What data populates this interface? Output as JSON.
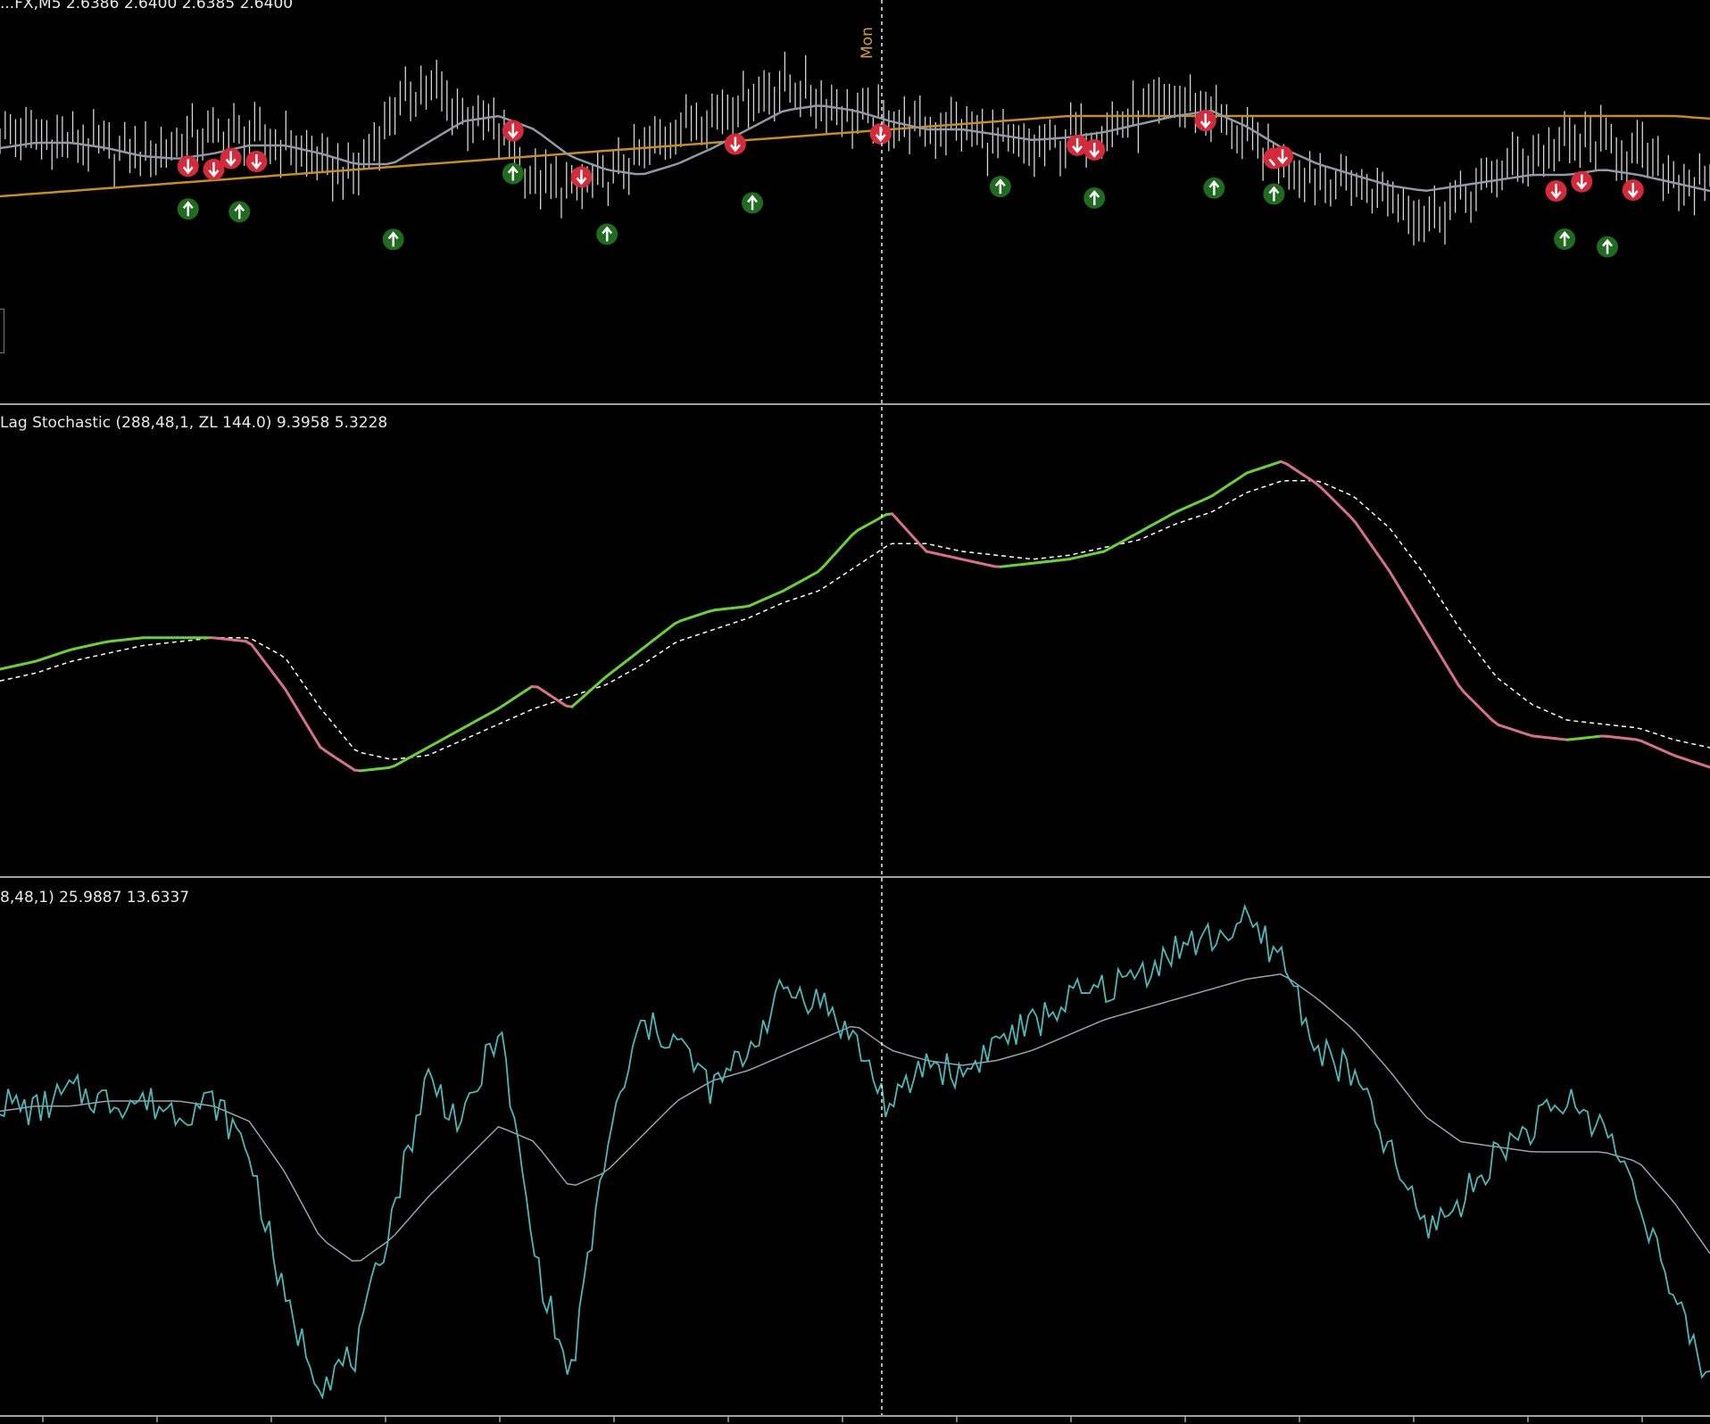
{
  "main_pane": {
    "label": "...FX,M5  2.6386 2.6400 2.6385 2.6400",
    "day_marker": "Mon"
  },
  "stoch_pane": {
    "label": "Lag Stochastic (288,48,1, ZL 144.0) 9.3958 5.3228"
  },
  "osc_pane": {
    "label": "8,48,1) 25.9887 13.6337"
  },
  "colors": {
    "background": "#000000",
    "price_bars": "#d8d8d8",
    "ma_fast": "#8f9aa6",
    "ma_slow": "#c88a2a",
    "buy_signal": "#1f6b1f",
    "sell_signal": "#d42b3c",
    "stoch_up": "#6ccf3a",
    "stoch_down": "#d9708a",
    "signal_line": "#ffffff",
    "osc_line": "#4cb8b8",
    "osc_signal": "#9aa3aa",
    "crosshair": "#ffffff",
    "day_marker": "#d4a030"
  },
  "chart_data": [
    {
      "type": "line",
      "pane": "price",
      "series": [
        {
          "values": [
            0.55,
            0.52,
            0.5,
            0.47,
            0.46,
            0.5,
            0.53,
            0.52,
            0.5,
            0.42,
            0.38,
            0.62,
            0.72,
            0.6,
            0.55,
            0.35,
            0.32,
            0.36,
            0.45,
            0.58,
            0.62,
            0.68,
            0.72,
            0.66,
            0.6,
            0.58,
            0.55,
            0.56,
            0.5,
            0.46,
            0.52,
            0.55,
            0.6,
            0.65,
            0.62,
            0.5,
            0.42,
            0.38,
            0.35,
            0.3,
            0.22,
            0.28,
            0.38,
            0.45,
            0.48,
            0.5,
            0.45,
            0.38,
            0.32
          ]
        },
        {
          "values": [
            0.48,
            0.5,
            0.5,
            0.48,
            0.45,
            0.44,
            0.46,
            0.49,
            0.49,
            0.46,
            0.42,
            0.42,
            0.5,
            0.58,
            0.6,
            0.55,
            0.45,
            0.4,
            0.38,
            0.42,
            0.48,
            0.55,
            0.62,
            0.64,
            0.62,
            0.58,
            0.55,
            0.55,
            0.53,
            0.51,
            0.52,
            0.54,
            0.57,
            0.6,
            0.62,
            0.56,
            0.48,
            0.42,
            0.38,
            0.34,
            0.32,
            0.34,
            0.36,
            0.38,
            0.38,
            0.4,
            0.38,
            0.35,
            0.32
          ]
        },
        {
          "values": [
            0.3,
            0.31,
            0.32,
            0.33,
            0.34,
            0.35,
            0.36,
            0.37,
            0.38,
            0.39,
            0.4,
            0.41,
            0.42,
            0.43,
            0.44,
            0.45,
            0.46,
            0.47,
            0.48,
            0.49,
            0.5,
            0.51,
            0.52,
            0.53,
            0.54,
            0.55,
            0.56,
            0.57,
            0.58,
            0.59,
            0.6,
            0.6,
            0.6,
            0.6,
            0.6,
            0.6,
            0.6,
            0.6,
            0.6,
            0.6,
            0.6,
            0.6,
            0.6,
            0.6,
            0.6,
            0.6,
            0.6,
            0.6,
            0.59
          ]
        }
      ],
      "sell_signals_x": [
        0.11,
        0.125,
        0.135,
        0.15,
        0.3,
        0.34,
        0.43,
        0.515,
        0.63,
        0.64,
        0.705,
        0.745,
        0.75,
        0.91,
        0.925,
        0.955
      ],
      "buy_signals_x": [
        0.11,
        0.14,
        0.23,
        0.3,
        0.355,
        0.44,
        0.585,
        0.64,
        0.71,
        0.745,
        0.915,
        0.94
      ]
    },
    {
      "type": "line",
      "pane": "lag-stochastic",
      "series": [
        {
          "values": [
            0.4,
            0.42,
            0.45,
            0.47,
            0.48,
            0.48,
            0.48,
            0.47,
            0.35,
            0.2,
            0.14,
            0.15,
            0.2,
            0.25,
            0.3,
            0.36,
            0.3,
            0.38,
            0.45,
            0.52,
            0.55,
            0.56,
            0.6,
            0.65,
            0.75,
            0.8,
            0.7,
            0.68,
            0.66,
            0.67,
            0.68,
            0.7,
            0.75,
            0.8,
            0.84,
            0.9,
            0.93,
            0.87,
            0.78,
            0.65,
            0.5,
            0.35,
            0.26,
            0.23,
            0.22,
            0.23,
            0.22,
            0.18,
            0.15
          ]
        },
        {
          "values": [
            0.37,
            0.39,
            0.42,
            0.44,
            0.46,
            0.47,
            0.48,
            0.48,
            0.43,
            0.3,
            0.19,
            0.17,
            0.18,
            0.22,
            0.26,
            0.3,
            0.33,
            0.36,
            0.41,
            0.47,
            0.5,
            0.53,
            0.57,
            0.6,
            0.66,
            0.72,
            0.72,
            0.7,
            0.69,
            0.68,
            0.69,
            0.71,
            0.73,
            0.77,
            0.8,
            0.85,
            0.88,
            0.88,
            0.84,
            0.76,
            0.64,
            0.5,
            0.38,
            0.31,
            0.27,
            0.26,
            0.25,
            0.22,
            0.2
          ]
        }
      ]
    },
    {
      "type": "line",
      "pane": "oscillator",
      "series": [
        {
          "values": [
            0.6,
            0.58,
            0.62,
            0.6,
            0.6,
            0.58,
            0.6,
            0.5,
            0.2,
            0.05,
            0.1,
            0.38,
            0.65,
            0.55,
            0.75,
            0.3,
            0.05,
            0.5,
            0.75,
            0.72,
            0.62,
            0.7,
            0.82,
            0.8,
            0.72,
            0.58,
            0.68,
            0.65,
            0.72,
            0.75,
            0.8,
            0.82,
            0.85,
            0.9,
            0.92,
            0.95,
            0.88,
            0.7,
            0.65,
            0.5,
            0.35,
            0.4,
            0.5,
            0.55,
            0.6,
            0.55,
            0.42,
            0.2,
            0.05
          ]
        },
        {
          "values": [
            0.58,
            0.59,
            0.59,
            0.6,
            0.6,
            0.6,
            0.59,
            0.56,
            0.46,
            0.33,
            0.28,
            0.33,
            0.41,
            0.48,
            0.55,
            0.52,
            0.43,
            0.46,
            0.53,
            0.6,
            0.64,
            0.66,
            0.69,
            0.72,
            0.75,
            0.7,
            0.68,
            0.67,
            0.68,
            0.7,
            0.73,
            0.76,
            0.78,
            0.8,
            0.82,
            0.84,
            0.85,
            0.8,
            0.74,
            0.66,
            0.57,
            0.52,
            0.51,
            0.5,
            0.5,
            0.5,
            0.48,
            0.4,
            0.3
          ]
        }
      ]
    }
  ]
}
